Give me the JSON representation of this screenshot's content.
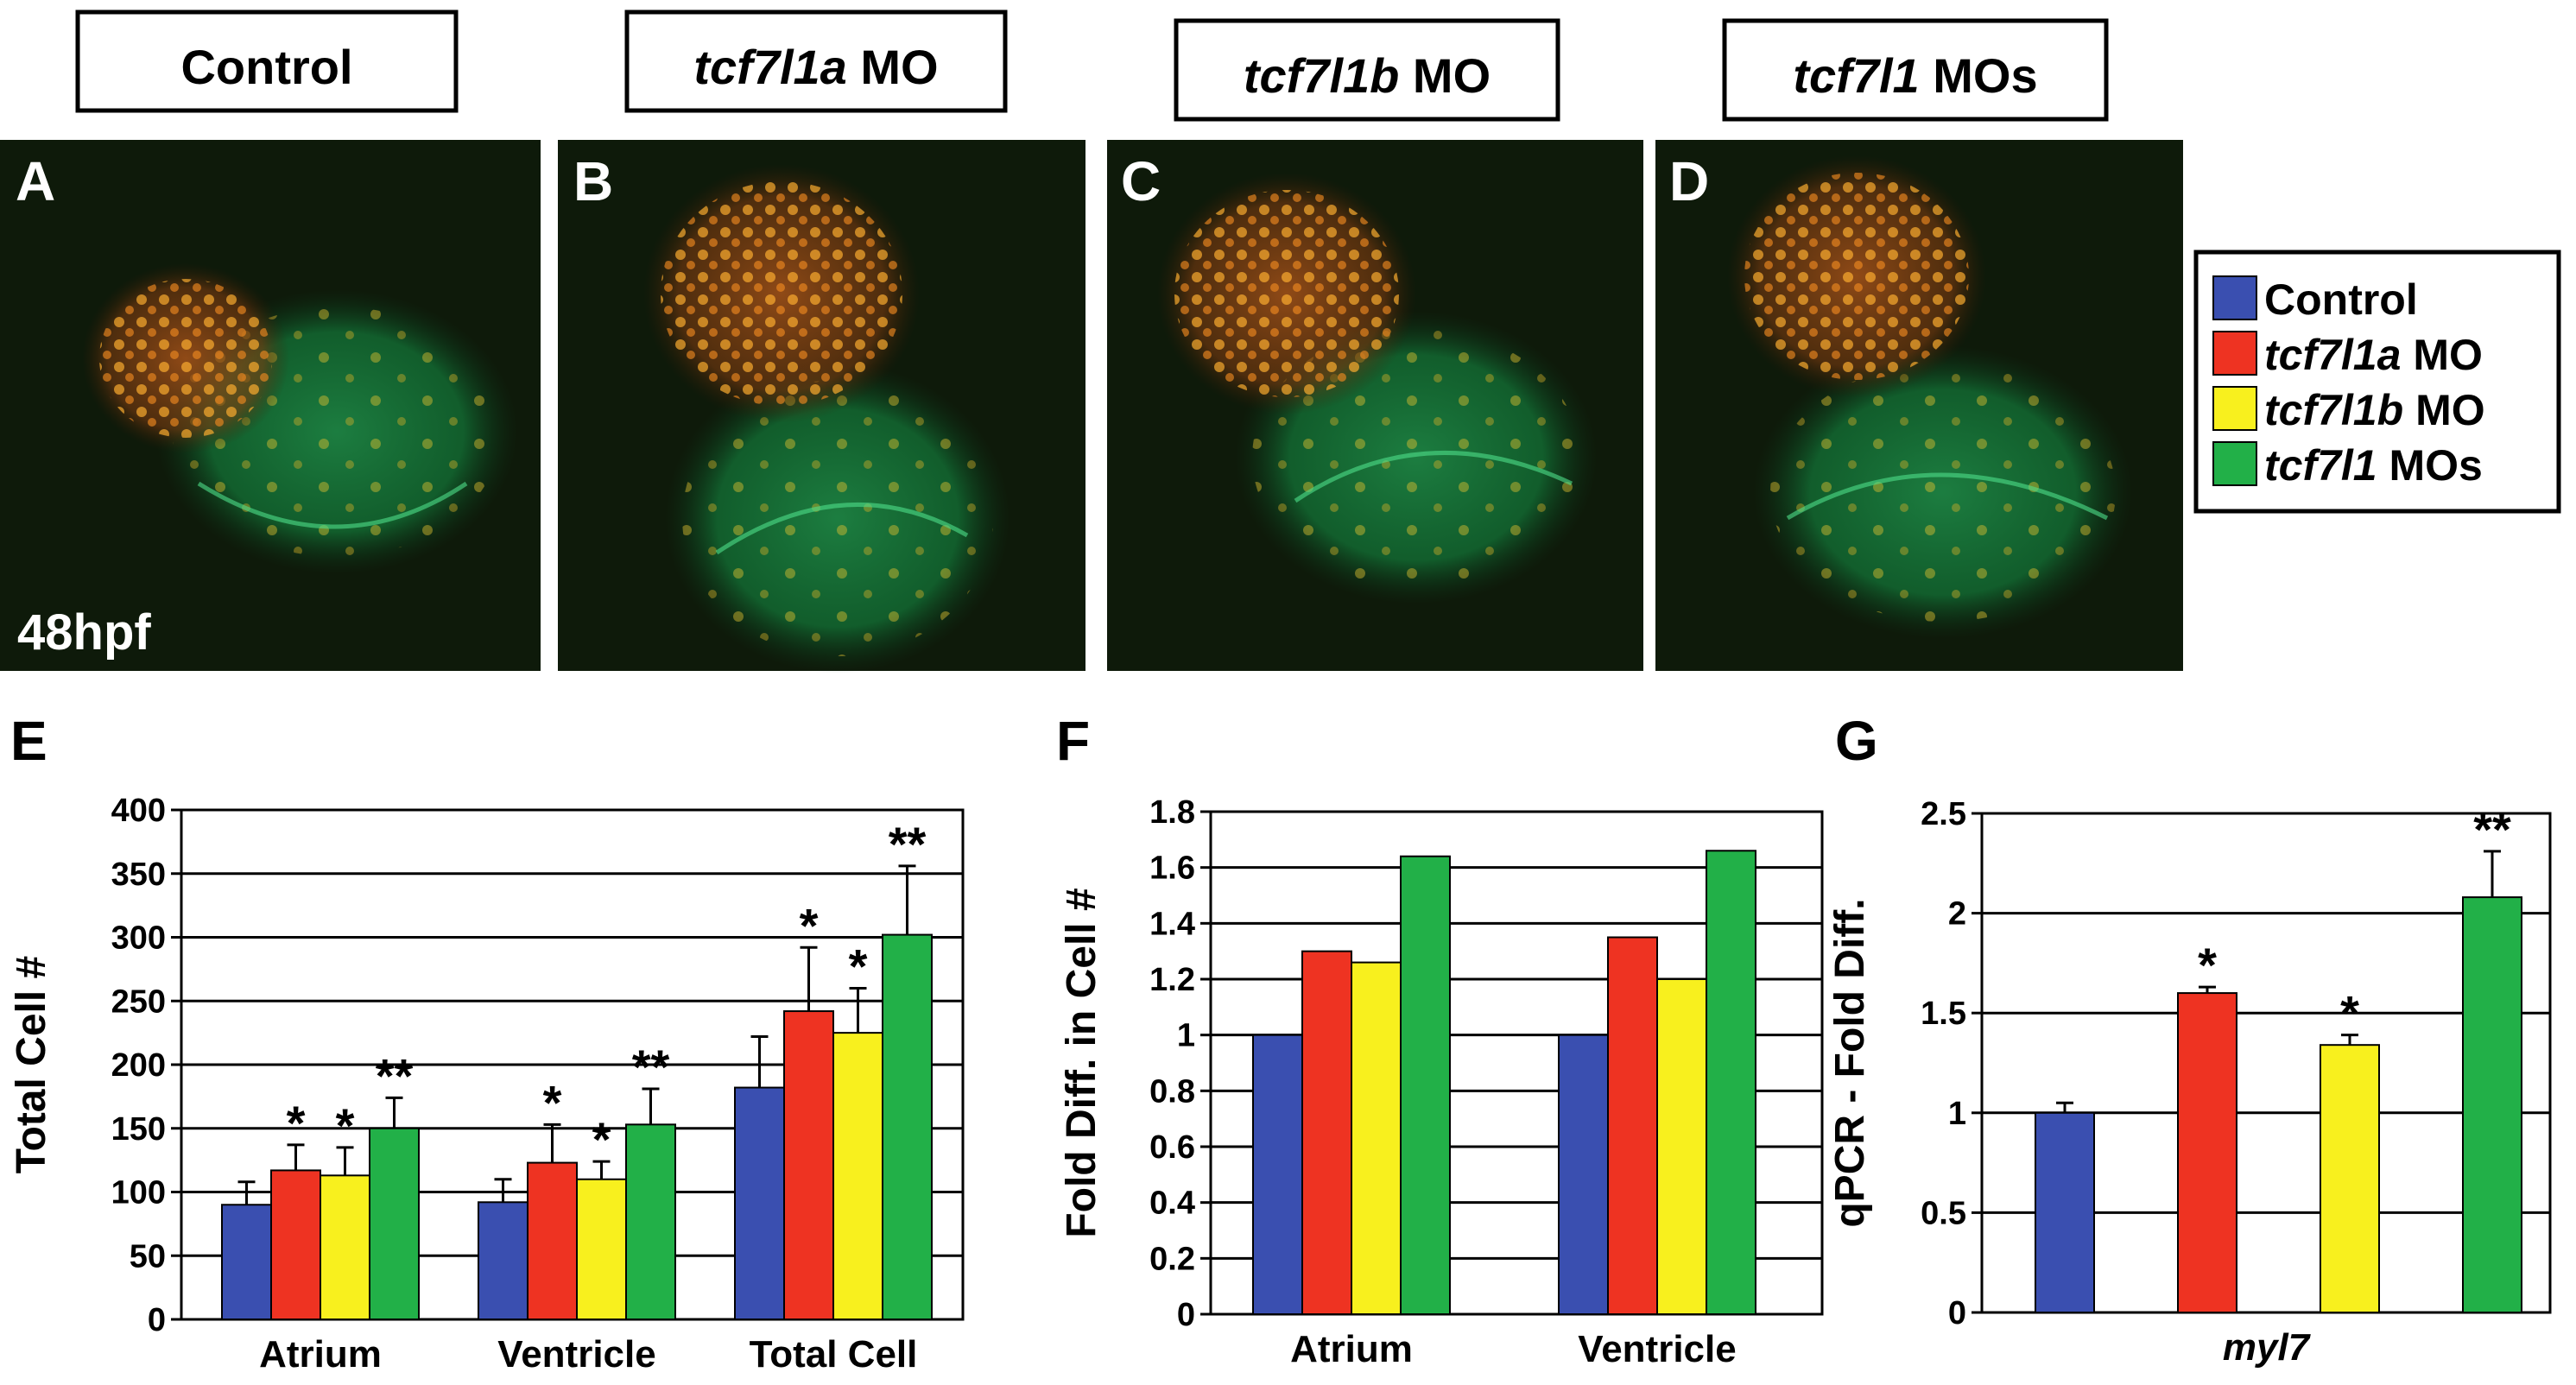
{
  "colors": {
    "control": "#3a4fb0",
    "tcf7l1a": "#ee3322",
    "tcf7l1b": "#f8f01e",
    "both": "#22b048"
  },
  "images": {
    "titles": [
      {
        "italic": "",
        "rest": "Control"
      },
      {
        "italic": "tcf7l1a",
        "rest": " MO"
      },
      {
        "italic": "tcf7l1b",
        "rest": " MO"
      },
      {
        "italic": "tcf7l1",
        "rest": " MOs"
      }
    ],
    "letters": [
      "A",
      "B",
      "C",
      "D"
    ],
    "stage": "48hpf"
  },
  "legend": [
    {
      "italic": "",
      "rest": "Control",
      "color_key": "control"
    },
    {
      "italic": "tcf7l1a",
      "rest": " MO",
      "color_key": "tcf7l1a"
    },
    {
      "italic": "tcf7l1b",
      "rest": " MO",
      "color_key": "tcf7l1b"
    },
    {
      "italic": "tcf7l1",
      "rest": " MOs",
      "color_key": "both"
    }
  ],
  "chart_data": [
    {
      "panel": "E",
      "type": "bar",
      "ylabel": "Total Cell #",
      "ylim": [
        0,
        400
      ],
      "yticks": [
        "0",
        "50",
        "100",
        "150",
        "200",
        "250",
        "300",
        "350",
        "400"
      ],
      "categories": [
        "Atrium",
        "Ventricle",
        "Total Cell"
      ],
      "series": [
        {
          "name": "Control",
          "values": [
            90,
            92,
            182
          ],
          "errors": [
            18,
            18,
            40
          ],
          "stars": [
            "",
            "",
            ""
          ]
        },
        {
          "name": "tcf7l1a MO",
          "values": [
            117,
            123,
            242
          ],
          "errors": [
            20,
            30,
            50
          ],
          "stars": [
            "*",
            "*",
            "*"
          ]
        },
        {
          "name": "tcf7l1b MO",
          "values": [
            113,
            110,
            225
          ],
          "errors": [
            22,
            14,
            35
          ],
          "stars": [
            "*",
            "*",
            "*"
          ]
        },
        {
          "name": "tcf7l1 MOs",
          "values": [
            150,
            153,
            302
          ],
          "errors": [
            24,
            28,
            54
          ],
          "stars": [
            "**",
            "**",
            "**"
          ]
        }
      ]
    },
    {
      "panel": "F",
      "type": "bar",
      "ylabel": "Fold Diff. in Cell #",
      "ylim": [
        0,
        1.8
      ],
      "yticks": [
        "0",
        "0.2",
        "0.4",
        "0.6",
        "0.8",
        "1",
        "1.2",
        "1.4",
        "1.6",
        "1.8"
      ],
      "categories": [
        "Atrium",
        "Ventricle"
      ],
      "series": [
        {
          "name": "Control",
          "values": [
            1.0,
            1.0
          ]
        },
        {
          "name": "tcf7l1a MO",
          "values": [
            1.3,
            1.35
          ]
        },
        {
          "name": "tcf7l1b MO",
          "values": [
            1.26,
            1.2
          ]
        },
        {
          "name": "tcf7l1 MOs",
          "values": [
            1.64,
            1.66
          ]
        }
      ]
    },
    {
      "panel": "G",
      "type": "bar",
      "ylabel": "qPCR - Fold Diff.",
      "ylim": [
        0,
        2.5
      ],
      "yticks": [
        "0",
        "0.5",
        "1",
        "1.5",
        "2",
        "2.5"
      ],
      "categories": [
        "myl7"
      ],
      "series": [
        {
          "name": "Control",
          "values": [
            1.0
          ],
          "errors": [
            0.05
          ],
          "stars": [
            ""
          ]
        },
        {
          "name": "tcf7l1a MO",
          "values": [
            1.6
          ],
          "errors": [
            0.03
          ],
          "stars": [
            "*"
          ]
        },
        {
          "name": "tcf7l1b MO",
          "values": [
            1.34
          ],
          "errors": [
            0.05
          ],
          "stars": [
            "*"
          ]
        },
        {
          "name": "tcf7l1 MOs",
          "values": [
            2.08
          ],
          "errors": [
            0.23
          ],
          "stars": [
            "**"
          ]
        }
      ]
    }
  ]
}
